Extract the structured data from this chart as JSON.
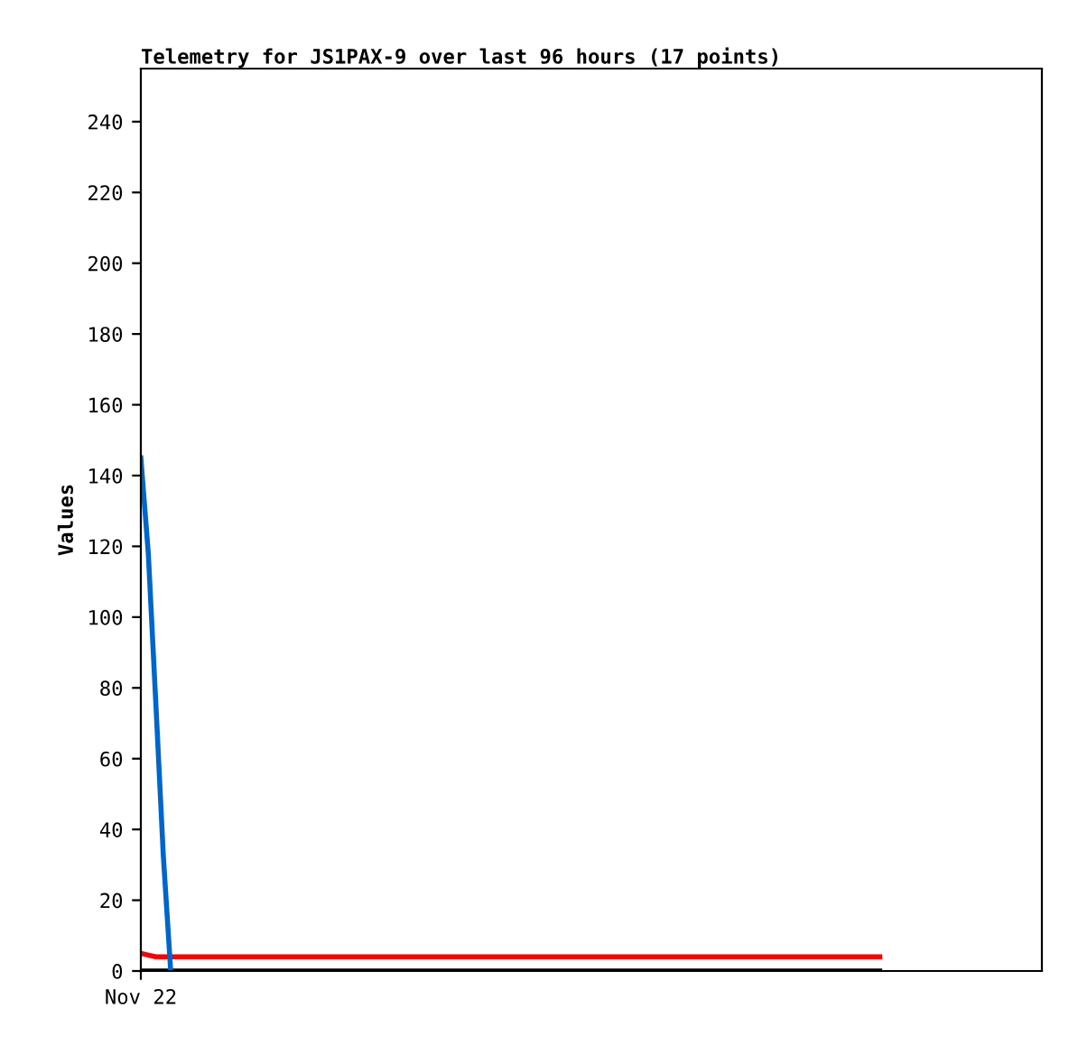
{
  "chart_data": {
    "type": "line",
    "title": "Telemetry for JS1PAX-9 over last 96 hours (17 points)",
    "ylabel": "Values",
    "categories": [
      "Nov 22",
      null,
      null,
      null,
      null,
      null,
      null,
      null,
      null,
      null,
      null,
      null,
      null,
      null,
      null,
      null,
      null,
      null,
      null,
      null,
      null,
      null,
      null,
      null,
      null,
      null,
      null,
      null,
      null,
      null,
      null,
      null,
      null,
      null,
      null,
      null,
      null,
      null,
      null,
      null,
      null,
      null,
      null,
      null,
      null,
      null,
      null,
      null,
      null,
      null,
      null,
      null,
      null,
      null,
      null,
      null,
      null,
      null,
      null,
      null,
      null,
      null,
      null,
      null,
      null,
      null,
      null,
      null,
      null,
      null,
      null,
      null,
      null,
      null,
      null,
      null,
      null,
      null,
      null,
      null,
      null,
      null,
      null,
      null,
      null,
      null,
      null,
      null,
      null,
      null,
      null,
      null,
      null,
      null,
      null,
      null,
      null,
      null,
      null,
      null
    ],
    "ylim": [
      0,
      255
    ],
    "yticks": [
      0,
      20,
      40,
      60,
      80,
      100,
      120,
      140,
      160,
      180,
      200,
      220,
      240
    ],
    "grid": false,
    "series": [
      {
        "color": "#000000",
        "values": [
          0,
          0,
          0,
          0,
          0,
          0,
          0,
          0,
          0,
          0,
          0,
          0,
          0,
          0,
          0,
          0,
          0,
          0,
          0,
          0,
          0,
          0,
          0,
          0,
          0,
          0,
          0,
          0,
          0,
          0,
          0,
          0,
          0,
          0,
          0,
          0,
          0,
          0,
          0,
          0,
          0,
          0,
          0,
          0,
          0,
          0,
          0,
          0,
          0,
          0,
          0,
          0,
          0,
          0,
          0,
          0,
          0,
          0,
          0,
          0,
          0,
          0,
          0,
          0,
          0,
          0,
          0,
          0,
          0,
          0,
          0,
          0,
          0,
          0,
          0,
          0,
          0,
          0,
          0,
          0,
          0,
          0,
          0,
          0,
          0,
          0,
          0,
          0,
          0,
          0,
          0,
          0,
          0,
          0,
          0,
          0,
          0,
          0,
          0,
          0
        ]
      },
      {
        "color": "#ff0000",
        "values": [
          5,
          4.5,
          4,
          4,
          4,
          4,
          4,
          4,
          4,
          4,
          4,
          4,
          4,
          4,
          4,
          4,
          4,
          4,
          4,
          4,
          4,
          4,
          4,
          4,
          4,
          4,
          4,
          4,
          4,
          4,
          4,
          4,
          4,
          4,
          4,
          4,
          4,
          4,
          4,
          4,
          4,
          4,
          4,
          4,
          4,
          4,
          4,
          4,
          4,
          4,
          4,
          4,
          4,
          4,
          4,
          4,
          4,
          4,
          4,
          4,
          4,
          4,
          4,
          4,
          4,
          4,
          4,
          4,
          4,
          4,
          4,
          4,
          4,
          4,
          4,
          4,
          4,
          4,
          4,
          4,
          4,
          4,
          4,
          4,
          4,
          4,
          4,
          4,
          4,
          4,
          4,
          4,
          4,
          4,
          4,
          4,
          4,
          4,
          4,
          4
        ]
      },
      {
        "color": "#0066cc",
        "values": [
          145,
          118,
          76,
          33,
          0,
          null,
          null,
          null,
          null,
          null,
          null,
          null,
          null,
          null,
          null,
          null,
          null,
          null,
          null,
          null,
          null,
          null,
          null,
          null,
          null,
          null,
          null,
          null,
          null,
          null,
          null,
          null,
          null,
          null,
          null,
          null,
          null,
          null,
          null,
          null,
          null,
          null,
          null,
          null,
          null,
          null,
          null,
          null,
          null,
          null,
          null,
          null,
          null,
          null,
          null,
          null,
          null,
          null,
          null,
          null,
          null,
          null,
          null,
          null,
          null,
          null,
          null,
          null,
          null,
          null,
          null,
          null,
          null,
          null,
          null,
          null,
          null,
          null,
          null,
          null,
          null,
          null,
          null,
          null,
          null,
          null,
          null,
          null,
          null,
          null,
          null,
          null,
          null,
          null,
          null,
          null,
          null,
          null,
          null,
          null
        ]
      }
    ]
  }
}
